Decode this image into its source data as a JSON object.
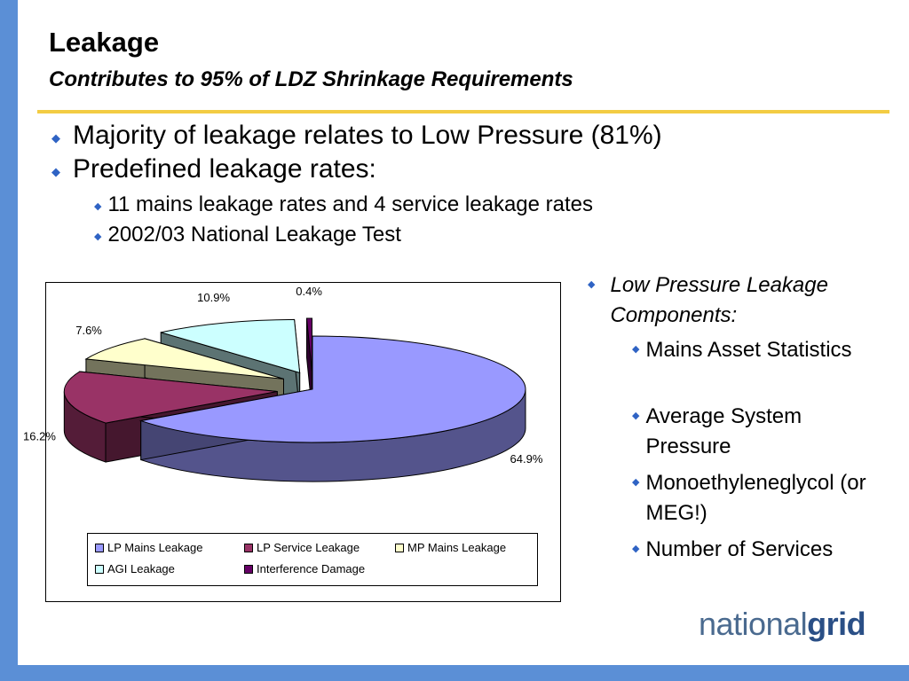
{
  "slide": {
    "title": "Leakage",
    "subtitle": "Contributes to 95% of LDZ Shrinkage Requirements"
  },
  "bullets": {
    "b1": "Majority of leakage relates to Low Pressure (81%)",
    "b2": "Predefined leakage rates:",
    "b2a": "11 mains leakage rates and 4 service leakage rates",
    "b2b": "2002/03 National Leakage Test"
  },
  "right_panel": {
    "heading": "Low Pressure Leakage Components:",
    "items": [
      "Mains Asset Statistics",
      "Average System Pressure",
      "Monoethyleneglycol (or MEG!)",
      "Number of Services"
    ]
  },
  "logo": {
    "part1": "national",
    "part2": "grid"
  },
  "colors": {
    "accent_bar": "#5b8fd6",
    "rule": "#f3cc43",
    "bullet": "#2f63c4"
  },
  "chart_data": {
    "type": "pie",
    "title": "",
    "legend_position": "bottom",
    "categories": [
      "LP Mains Leakage",
      "LP Service Leakage",
      "MP Mains Leakage",
      "AGI Leakage",
      "Interference Damage"
    ],
    "values": [
      64.9,
      16.2,
      7.6,
      10.9,
      0.4
    ],
    "data_labels": [
      "64.9%",
      "16.2%",
      "7.6%",
      "10.9%",
      "0.4%"
    ],
    "colors": [
      "#9999ff",
      "#993366",
      "#ffffcc",
      "#ccffff",
      "#660066"
    ]
  }
}
